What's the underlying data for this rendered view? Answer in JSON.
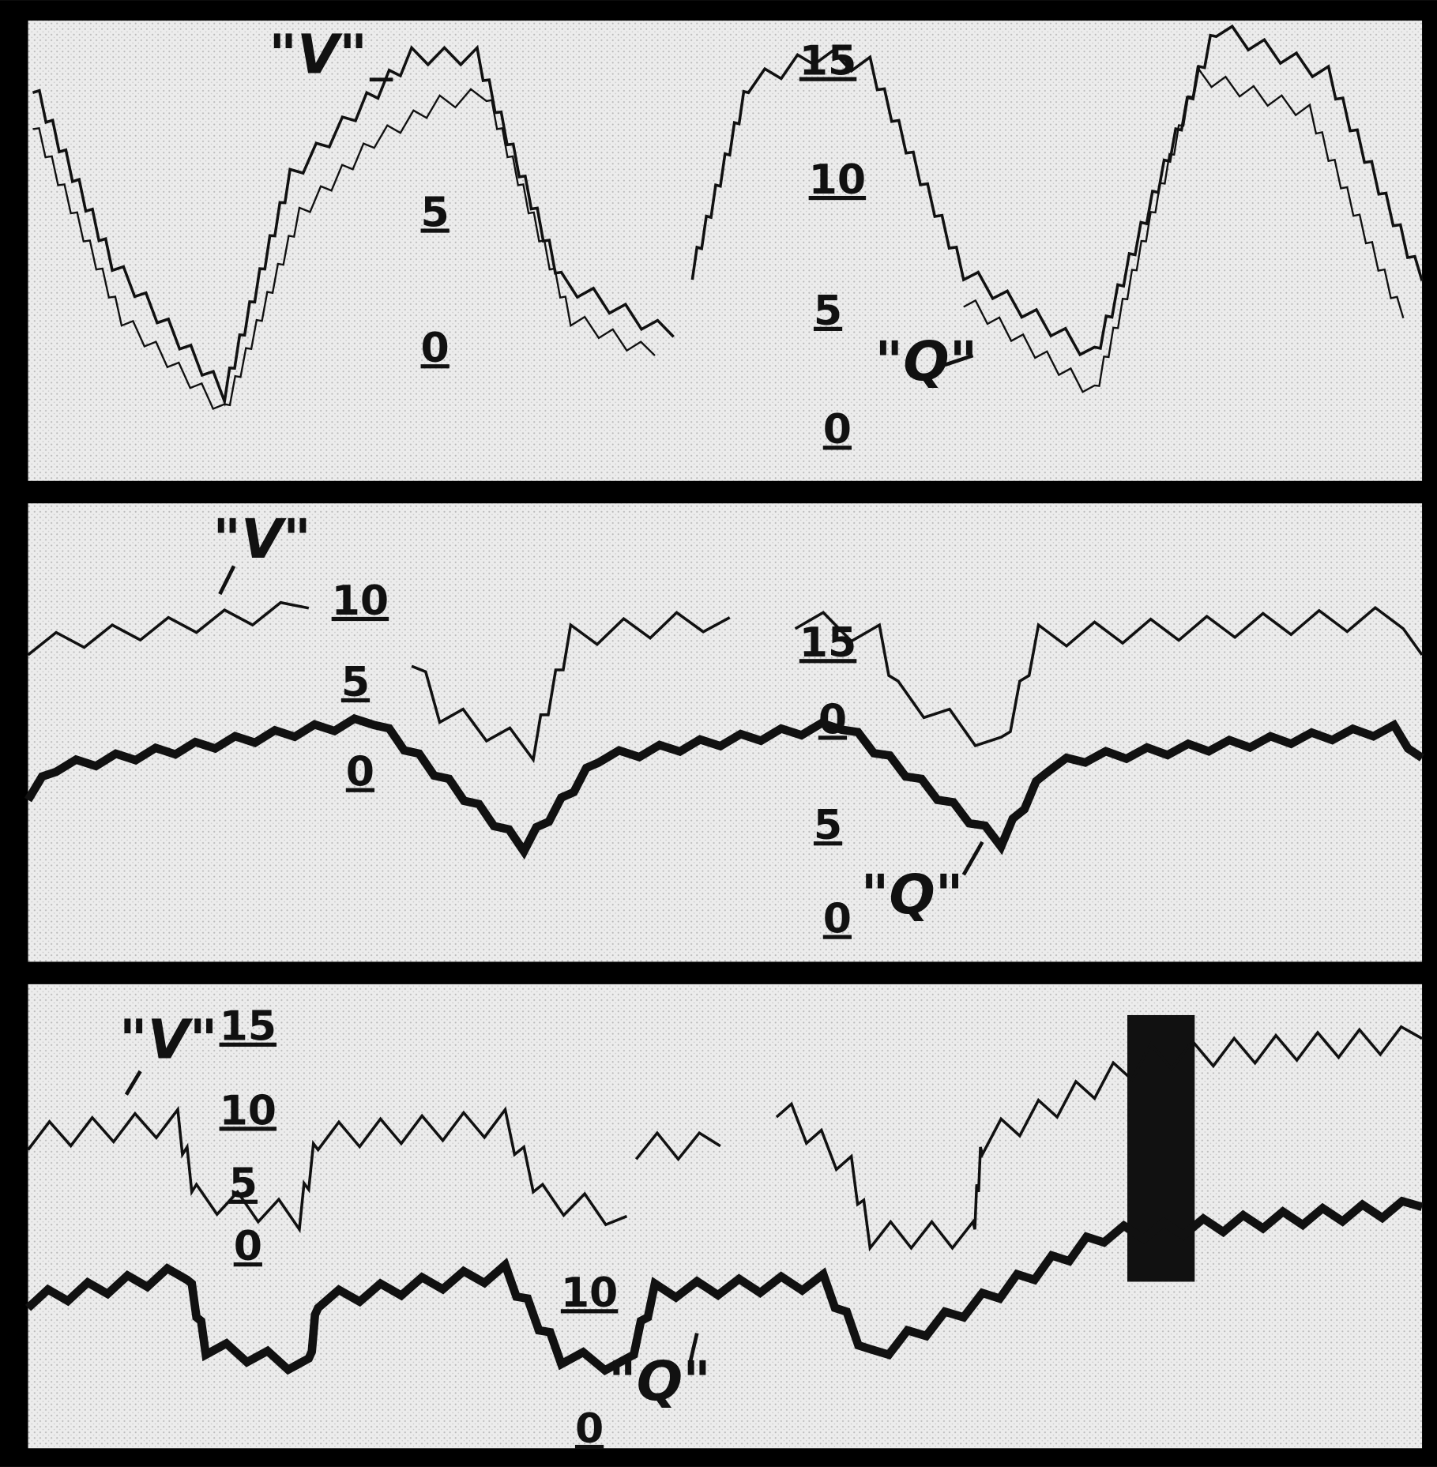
{
  "panels": [
    {
      "markers": [
        "\"V\"",
        "\"Q\""
      ],
      "scales": [
        [
          "5",
          "0"
        ],
        [
          "15",
          "10",
          "5",
          "0"
        ]
      ]
    },
    {
      "markers": [
        "\"V\"",
        "\"Q\""
      ],
      "scales": [
        [
          "10",
          "5",
          "0"
        ],
        [
          "15",
          "0",
          "5",
          "0"
        ]
      ]
    },
    {
      "markers": [
        "\"V\"",
        "\"Q\""
      ],
      "scales": [
        [
          "15",
          "10",
          "5",
          "0"
        ],
        [
          "10",
          "0"
        ]
      ]
    }
  ]
}
